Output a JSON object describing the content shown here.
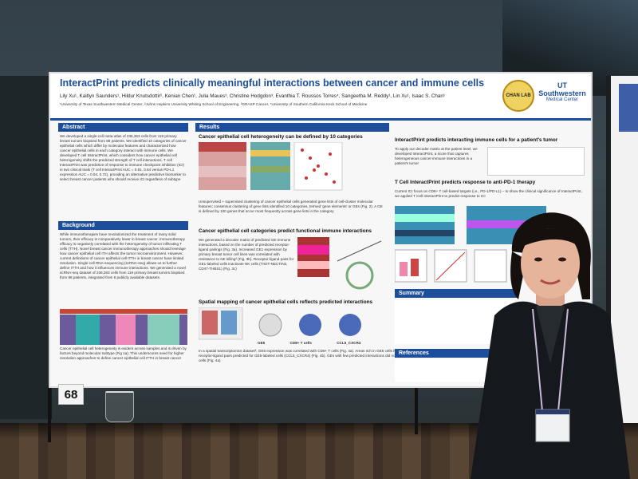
{
  "poster": {
    "title": "InteractPrint predicts clinically meaningful interactions between cancer and immune cells",
    "authors": "Lily Xu¹, Kaitlyn Saunders¹, Hildur Knutsdottir², Kenian Chen¹, Julia Maues³, Christine Hodgdon³, Evanthia T. Roussos Torres⁴, Sangeetha M. Reddy¹, Lin Xu¹, Isaac S. Chan¹",
    "affiliations": "¹University of Texas Southwestern Medical Center, ²Johns Hopkins University Whiting School of Engineering, ³GRASP Cancer, ⁴University of Southern California Keck School of Medicine",
    "logo_text": "CHAN LAB",
    "institution_line1": "UT Southwestern",
    "institution_line2": "Medical Center",
    "board_number": "68",
    "abstract": {
      "header": "Abstract",
      "text": "We developed a single-cell meta-atlas of 236,363 cells from 119 primary breast tumors biopsied from 88 patients. We identified 10 categories of cancer epithelial cells which differ by molecular features and characterized how cancer epithelial cells in each category interact with immune cells. We developed T cell InteractPrint, which considers how cancer epithelial cell heterogeneity shifts the predicted strength of T cell interactions. T cell InteractPrint was predictive of response to immune checkpoint inhibition (ICI) in two clinical trials (T cell InteractPrint AUC = 0.81, 0.84 versus PD-L1 expression AUC = 0.54, 0.72), providing an alternative predictive biomarker to select breast cancer patients who should receive ICI regardless of subtype"
    },
    "background": {
      "header": "Background",
      "text": "While immunotherapies have revolutionized the treatment of many solid tumors, their efficacy is comparatively lower in breast cancer. Immunotherapy efficacy is negatively correlated with the heterogeneity of tumor infiltrating T cells (TTH). Novel breast cancer immunotherapy approaches should leverage how cancer epithelial cell ITH affects the tumor microenvironment. However, current definitions of cancer epithelial cell ITTH in breast cancer have limited resolution. Single-cell RNA-sequencing (scRNA-seq) allows us to further define ITTH and how it influences immune interactions. We generated a novel scRNA-seq dataset of 236,363 cells from 119 primary breast tumors biopsied from 88 patients, integrated from 8 publicly available datasets.",
      "footer": "Cancer epithelial cell heterogeneity is evident across samples and is driven by factors beyond molecular subtype (Fig 1a). This underscores need for higher resolution approaches to define cancer epithelial cell ITTH in breast cancer"
    },
    "results": {
      "header": "Results",
      "s1_title": "Cancer epithelial cell heterogeneity can be defined by 10 categories",
      "s1_text": "Unsupervised + supervised clustering of cancer epithelial cells generated gene lists of cell-cluster molecular features; consensus clustering of gene lists identified 10 categories, termed 'gene elements' or GEs (Fig. 2). A GE is defined by 100 genes that occur most frequently across gene lists in the category",
      "s2_title": "Cancer epithelial cell categories predict functional immune interactions",
      "s2_text": "We generated a decoder matrix of predicted GE-immune interactions, based on the number of predicted receptor-ligand pairings (Fig. 3a). Increased GE1 expression by primary breast tumor cell lines was correlated with resistance to NK killing² (Fig. 3b). Receptor-ligand pairs for GE1-labeled cells inactivate NK cells (TIGIT-NECTIN2, CD47-THBS1) (Fig. 3c)",
      "s3_title": "Spatial mapping of cancer epithelial cells reflects predicted interactions",
      "s3_text": "In a spatial transcriptomics dataset³, GE5 expression was correlated with CD8+ T cells (Fig. 4a). Areas rich in GE5 cells had increased colocalization of key receptor-ligand pairs predicted for GE5-labeled cells (CCL5_CXCR4) (Fig. 4b). GEs with few predicted interactions did not consistently colocalize with CD8+ T cells (Fig. 4a)",
      "s3_labels": [
        "GE5",
        "CD8+ T cells",
        "CCL5_CXCR4"
      ]
    },
    "right": {
      "s4_title": "InteractPrint predicts interacting immune cells for a patient's tumor",
      "s4_text": "To apply our decoder matrix at the patient level, we developed InteractPrint, a score that captures heterogeneous cancer-immune interactions in a patient's tumor",
      "s5_title": "T Cell InteractPrint predicts response to anti-PD-1 therapy",
      "s5_text": "Current ICI focus on CD8+ T cell-based targets (i.e., PD-1/PD-L1) – to show the clinical significance of InteractPrint, we applied T Cell InteractPrint to predict response to ICI",
      "summary_header": "Summary",
      "references_header": "References"
    }
  },
  "colors": {
    "poster_blue": "#1d4e9b",
    "poster_bg": "#f7f7f7",
    "wall": "#3b4850",
    "floor": "#4a3a2c",
    "jacket": "#15181c",
    "logo_gold": "#f0d260"
  }
}
